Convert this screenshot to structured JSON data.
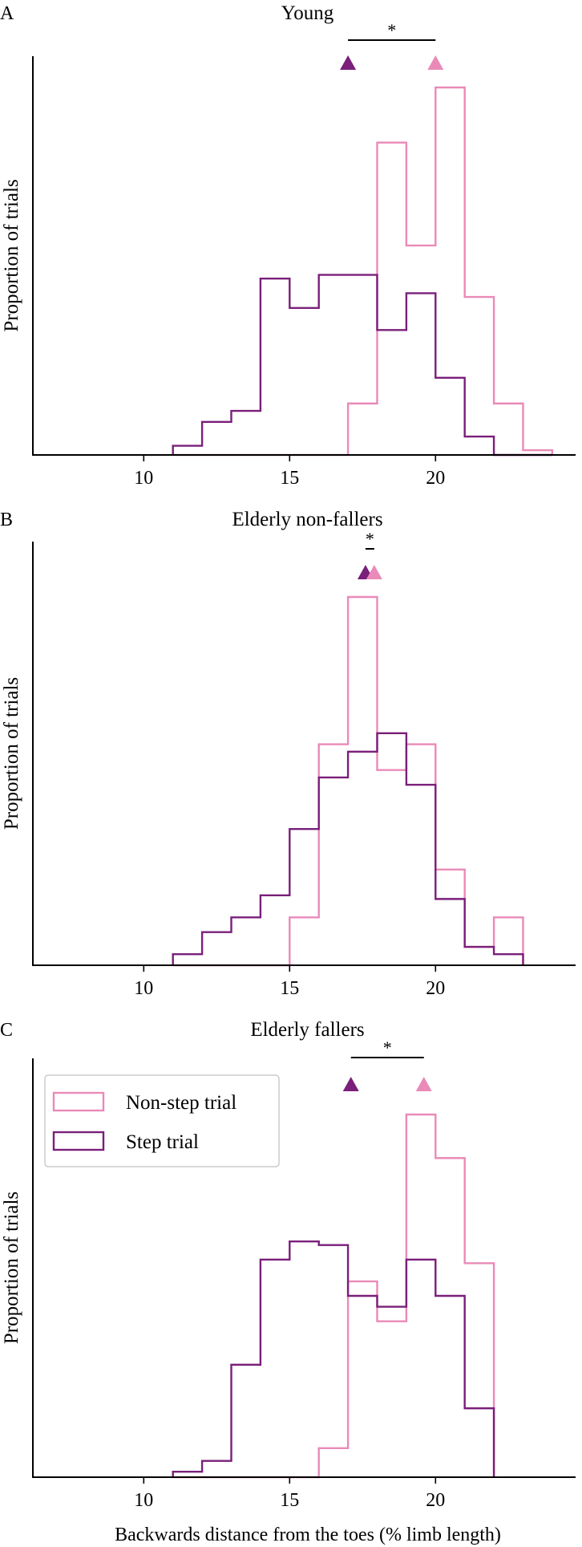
{
  "figure": {
    "xlabel": "Backwards distance from the toes (% limb length)",
    "legend": {
      "placement": "top-left of panel C",
      "entries": [
        {
          "label": "Non-step trial",
          "color": "#ea8ab8"
        },
        {
          "label": "Step trial",
          "color": "#7a1f7a"
        }
      ]
    },
    "colors": {
      "non_step": "#ea8ab8",
      "step": "#7a1f7a",
      "axis": "#000000"
    }
  },
  "chart_data": [
    {
      "type": "histogram",
      "panel_letter": "A",
      "title": "Young",
      "ylabel": "Proportion of trials",
      "xlim": [
        6.2,
        24.8
      ],
      "ylim": [
        0,
        1
      ],
      "x_ticks": [
        10,
        15,
        20
      ],
      "bin_edges": [
        11,
        12,
        13,
        14,
        15,
        16,
        17,
        18,
        19,
        20,
        21,
        22,
        23,
        24
      ],
      "series": [
        {
          "name": "Non-step trial",
          "color": "#ea8ab8",
          "values": [
            0,
            0,
            0,
            0,
            0,
            0,
            0.14,
            0.85,
            0.57,
            1.0,
            0.43,
            0.14,
            0.013
          ]
        },
        {
          "name": "Step trial",
          "color": "#7a1f7a",
          "values": [
            0.025,
            0.09,
            0.12,
            0.48,
            0.4,
            0.49,
            0.49,
            0.34,
            0.44,
            0.21,
            0.05,
            0,
            0
          ]
        }
      ],
      "markers": [
        {
          "series": "Step trial",
          "x": 17.0
        },
        {
          "series": "Non-step trial",
          "x": 20.0
        }
      ],
      "significance": {
        "x1": 17.0,
        "x2": 20.0,
        "label": "*"
      }
    },
    {
      "type": "histogram",
      "panel_letter": "B",
      "title": "Elderly non-fallers",
      "ylabel": "Proportion of trials",
      "xlim": [
        6.2,
        24.8
      ],
      "ylim": [
        0,
        1
      ],
      "x_ticks": [
        10,
        15,
        20
      ],
      "bin_edges": [
        11,
        12,
        13,
        14,
        15,
        16,
        17,
        18,
        19,
        20,
        21,
        22,
        23
      ],
      "series": [
        {
          "name": "Non-step trial",
          "color": "#ea8ab8",
          "values": [
            0,
            0,
            0,
            0,
            0.13,
            0.6,
            1.0,
            0.53,
            0.6,
            0.26,
            0.05,
            0.13
          ]
        },
        {
          "name": "Step trial",
          "color": "#7a1f7a",
          "values": [
            0.03,
            0.09,
            0.13,
            0.19,
            0.37,
            0.51,
            0.58,
            0.63,
            0.49,
            0.18,
            0.05,
            0.03
          ]
        }
      ],
      "markers": [
        {
          "series": "Step trial",
          "x": 17.6
        },
        {
          "series": "Non-step trial",
          "x": 17.9
        }
      ],
      "significance": {
        "x1": 17.6,
        "x2": 17.9,
        "label": "*"
      }
    },
    {
      "type": "histogram",
      "panel_letter": "C",
      "title": "Elderly fallers",
      "ylabel": "Proportion of trials",
      "xlim": [
        6.2,
        24.8
      ],
      "ylim": [
        0,
        1
      ],
      "x_ticks": [
        10,
        15,
        20
      ],
      "bin_edges": [
        11,
        12,
        13,
        14,
        15,
        16,
        17,
        18,
        19,
        20,
        21,
        22
      ],
      "series": [
        {
          "name": "Non-step trial",
          "color": "#ea8ab8",
          "values": [
            0,
            0,
            0,
            0,
            0,
            0.08,
            0.54,
            0.43,
            1.0,
            0.88,
            0.59
          ]
        },
        {
          "name": "Step trial",
          "color": "#7a1f7a",
          "values": [
            0.015,
            0.045,
            0.31,
            0.6,
            0.65,
            0.64,
            0.5,
            0.47,
            0.6,
            0.5,
            0.19
          ]
        }
      ],
      "markers": [
        {
          "series": "Step trial",
          "x": 17.1
        },
        {
          "series": "Non-step trial",
          "x": 19.6
        }
      ],
      "significance": {
        "x1": 17.1,
        "x2": 19.6,
        "label": "*"
      }
    }
  ]
}
